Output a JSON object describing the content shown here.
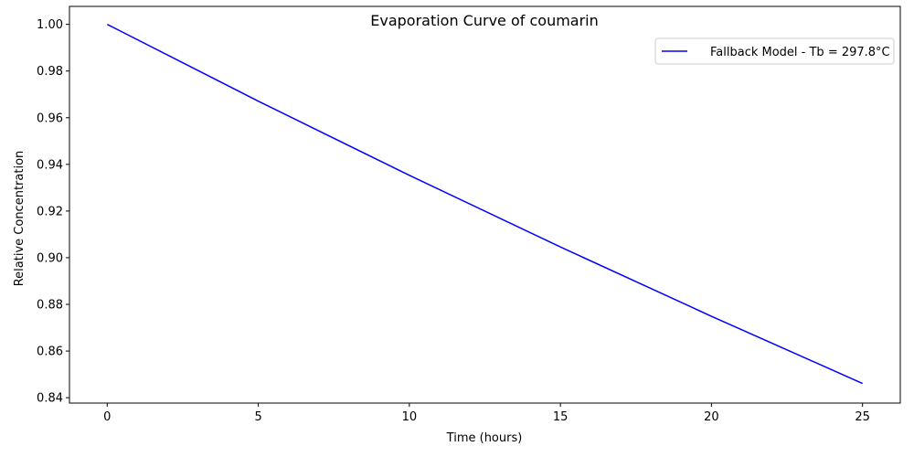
{
  "chart_data": {
    "type": "line",
    "title": "Evaporation Curve of coumarin",
    "xlabel": "Time (hours)",
    "ylabel": "Relative Concentration",
    "xlim": [
      -1.25,
      26.25
    ],
    "ylim": [
      0.8377,
      1.0077
    ],
    "xticks": [
      0,
      5,
      10,
      15,
      20,
      25
    ],
    "xtick_labels": [
      "0",
      "5",
      "10",
      "15",
      "20",
      "25"
    ],
    "yticks": [
      0.84,
      0.86,
      0.88,
      0.9,
      0.92,
      0.94,
      0.96,
      0.98,
      1.0
    ],
    "ytick_labels": [
      "0.84",
      "0.86",
      "0.88",
      "0.90",
      "0.92",
      "0.94",
      "0.96",
      "0.98",
      "1.00"
    ],
    "grid": false,
    "legend_position": "top-right",
    "series": [
      {
        "name": "Fallback Model - Tb = 297.8°C",
        "color": "#0000ff",
        "x": [
          0,
          5,
          10,
          15,
          20,
          25
        ],
        "y": [
          1.0,
          0.9671,
          0.9353,
          0.9046,
          0.8749,
          0.8461
        ]
      }
    ]
  }
}
